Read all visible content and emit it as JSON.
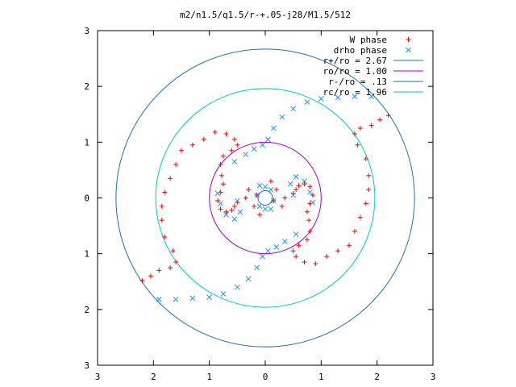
{
  "chart_data": {
    "type": "scatter",
    "title": "m2/n1.5/q1.5/r-+.05-j28/M1.5/512",
    "xlabel": "",
    "ylabel": "",
    "xlim": [
      -3,
      3
    ],
    "ylim": [
      -3,
      3
    ],
    "x_ticks": [
      -3,
      -2,
      -1,
      0,
      1,
      2,
      3
    ],
    "x_tick_labels": [
      "3",
      "2",
      "1",
      "0",
      "1",
      "2",
      "3"
    ],
    "y_ticks": [
      3,
      2,
      1,
      0,
      -1,
      -2,
      -3
    ],
    "y_tick_labels": [
      "3",
      "2",
      "1",
      "0",
      "1",
      "2",
      "3"
    ],
    "grid": false,
    "legend_position": "top-right",
    "colors": {
      "w_phase": "#ff0000",
      "drho_phase": "#1e90ff",
      "r_plus": "#1f6fb5",
      "ro": "#a000c8",
      "r_minus": "#1f6fb5",
      "rc": "#00c8c8"
    },
    "series": [
      {
        "name": "W phase",
        "marker": "plus",
        "color": "#ff0000",
        "points": [
          [
            0.5,
            0.08
          ],
          [
            0.55,
            0.15
          ],
          [
            0.6,
            0.22
          ],
          [
            0.7,
            0.25
          ],
          [
            0.8,
            0.2
          ],
          [
            0.85,
            0.05
          ],
          [
            0.8,
            -0.1
          ],
          [
            0.75,
            -0.25
          ],
          [
            0.78,
            -0.4
          ],
          [
            0.8,
            -0.6
          ],
          [
            0.75,
            -0.75
          ],
          [
            0.6,
            -0.85
          ],
          [
            0.5,
            -0.95
          ],
          [
            0.55,
            -1.05
          ],
          [
            0.7,
            -1.15
          ],
          [
            0.9,
            -1.18
          ],
          [
            1.1,
            -1.05
          ],
          [
            1.3,
            -0.95
          ],
          [
            1.5,
            -0.85
          ],
          [
            1.6,
            -0.6
          ],
          [
            1.7,
            -0.35
          ],
          [
            1.8,
            -0.1
          ],
          [
            1.85,
            0.15
          ],
          [
            1.85,
            0.4
          ],
          [
            1.8,
            0.7
          ],
          [
            1.65,
            0.95
          ],
          [
            1.6,
            1.15
          ],
          [
            1.7,
            1.25
          ],
          [
            1.9,
            1.3
          ],
          [
            2.05,
            1.4
          ],
          [
            2.2,
            1.48
          ],
          [
            -0.5,
            -0.08
          ],
          [
            -0.55,
            -0.15
          ],
          [
            -0.6,
            -0.22
          ],
          [
            -0.7,
            -0.25
          ],
          [
            -0.8,
            -0.2
          ],
          [
            -0.85,
            -0.05
          ],
          [
            -0.8,
            0.1
          ],
          [
            -0.75,
            0.25
          ],
          [
            -0.78,
            0.4
          ],
          [
            -0.8,
            0.6
          ],
          [
            -0.75,
            0.75
          ],
          [
            -0.6,
            0.85
          ],
          [
            -0.5,
            0.95
          ],
          [
            -0.55,
            1.05
          ],
          [
            -0.7,
            1.15
          ],
          [
            -0.9,
            1.18
          ],
          [
            -1.1,
            1.05
          ],
          [
            -1.3,
            0.95
          ],
          [
            -1.5,
            0.85
          ],
          [
            -1.6,
            0.6
          ],
          [
            -1.7,
            0.35
          ],
          [
            -1.8,
            0.1
          ],
          [
            -1.85,
            -0.15
          ],
          [
            -1.85,
            -0.4
          ],
          [
            -1.8,
            -0.7
          ],
          [
            -1.65,
            -0.95
          ],
          [
            -1.6,
            -1.15
          ],
          [
            -1.7,
            -1.25
          ],
          [
            -1.9,
            -1.3
          ],
          [
            -2.05,
            -1.4
          ],
          [
            -2.2,
            -1.48
          ],
          [
            0.1,
            0.3
          ],
          [
            0.2,
            0.15
          ],
          [
            0.15,
            -0.05
          ],
          [
            0.3,
            -0.15
          ],
          [
            0.35,
            0.0
          ],
          [
            -0.1,
            -0.3
          ],
          [
            -0.2,
            -0.15
          ],
          [
            -0.15,
            0.05
          ],
          [
            -0.3,
            0.15
          ],
          [
            -0.35,
            0.0
          ]
        ]
      },
      {
        "name": "drho phase",
        "marker": "cross",
        "color": "#1e90ff",
        "points": [
          [
            -0.2,
            0.88
          ],
          [
            -0.05,
            0.95
          ],
          [
            0.05,
            1.05
          ],
          [
            0.15,
            1.25
          ],
          [
            0.3,
            1.45
          ],
          [
            0.5,
            1.6
          ],
          [
            0.75,
            1.72
          ],
          [
            1.0,
            1.78
          ],
          [
            1.3,
            1.8
          ],
          [
            1.6,
            1.82
          ],
          [
            1.9,
            1.82
          ],
          [
            0.2,
            -0.88
          ],
          [
            0.05,
            -0.95
          ],
          [
            -0.05,
            -1.05
          ],
          [
            -0.15,
            -1.25
          ],
          [
            -0.3,
            -1.45
          ],
          [
            -0.5,
            -1.6
          ],
          [
            -0.75,
            -1.72
          ],
          [
            -1.0,
            -1.78
          ],
          [
            -1.3,
            -1.8
          ],
          [
            -1.6,
            -1.82
          ],
          [
            -1.9,
            -1.82
          ],
          [
            -0.85,
            0.08
          ],
          [
            -0.8,
            -0.1
          ],
          [
            -0.7,
            -0.3
          ],
          [
            -0.55,
            -0.38
          ],
          [
            -0.45,
            -0.25
          ],
          [
            -0.5,
            -0.05
          ],
          [
            0.85,
            -0.08
          ],
          [
            0.8,
            0.1
          ],
          [
            0.7,
            0.3
          ],
          [
            0.55,
            0.38
          ],
          [
            0.45,
            0.25
          ],
          [
            0.5,
            0.05
          ],
          [
            -0.1,
            0.22
          ],
          [
            0.0,
            0.2
          ],
          [
            0.1,
            0.15
          ],
          [
            0.15,
            -0.05
          ],
          [
            0.1,
            -0.2
          ],
          [
            0.0,
            -0.2
          ],
          [
            -0.1,
            -0.15
          ],
          [
            -0.15,
            0.05
          ],
          [
            -0.35,
            0.78
          ],
          [
            -0.55,
            0.65
          ],
          [
            0.35,
            -0.78
          ],
          [
            0.55,
            -0.65
          ]
        ]
      }
    ],
    "circles": [
      {
        "name": "r+/ro = 2.67",
        "radius": 2.67,
        "color": "#1f6fb5"
      },
      {
        "name": "ro/ro = 1.00",
        "radius": 1.0,
        "color": "#a000c8"
      },
      {
        "name": "r-/ro = .13",
        "radius": 0.13,
        "color": "#1f6fb5"
      },
      {
        "name": "rc/ro = 1.96",
        "radius": 1.96,
        "color": "#00c8c8"
      }
    ]
  }
}
